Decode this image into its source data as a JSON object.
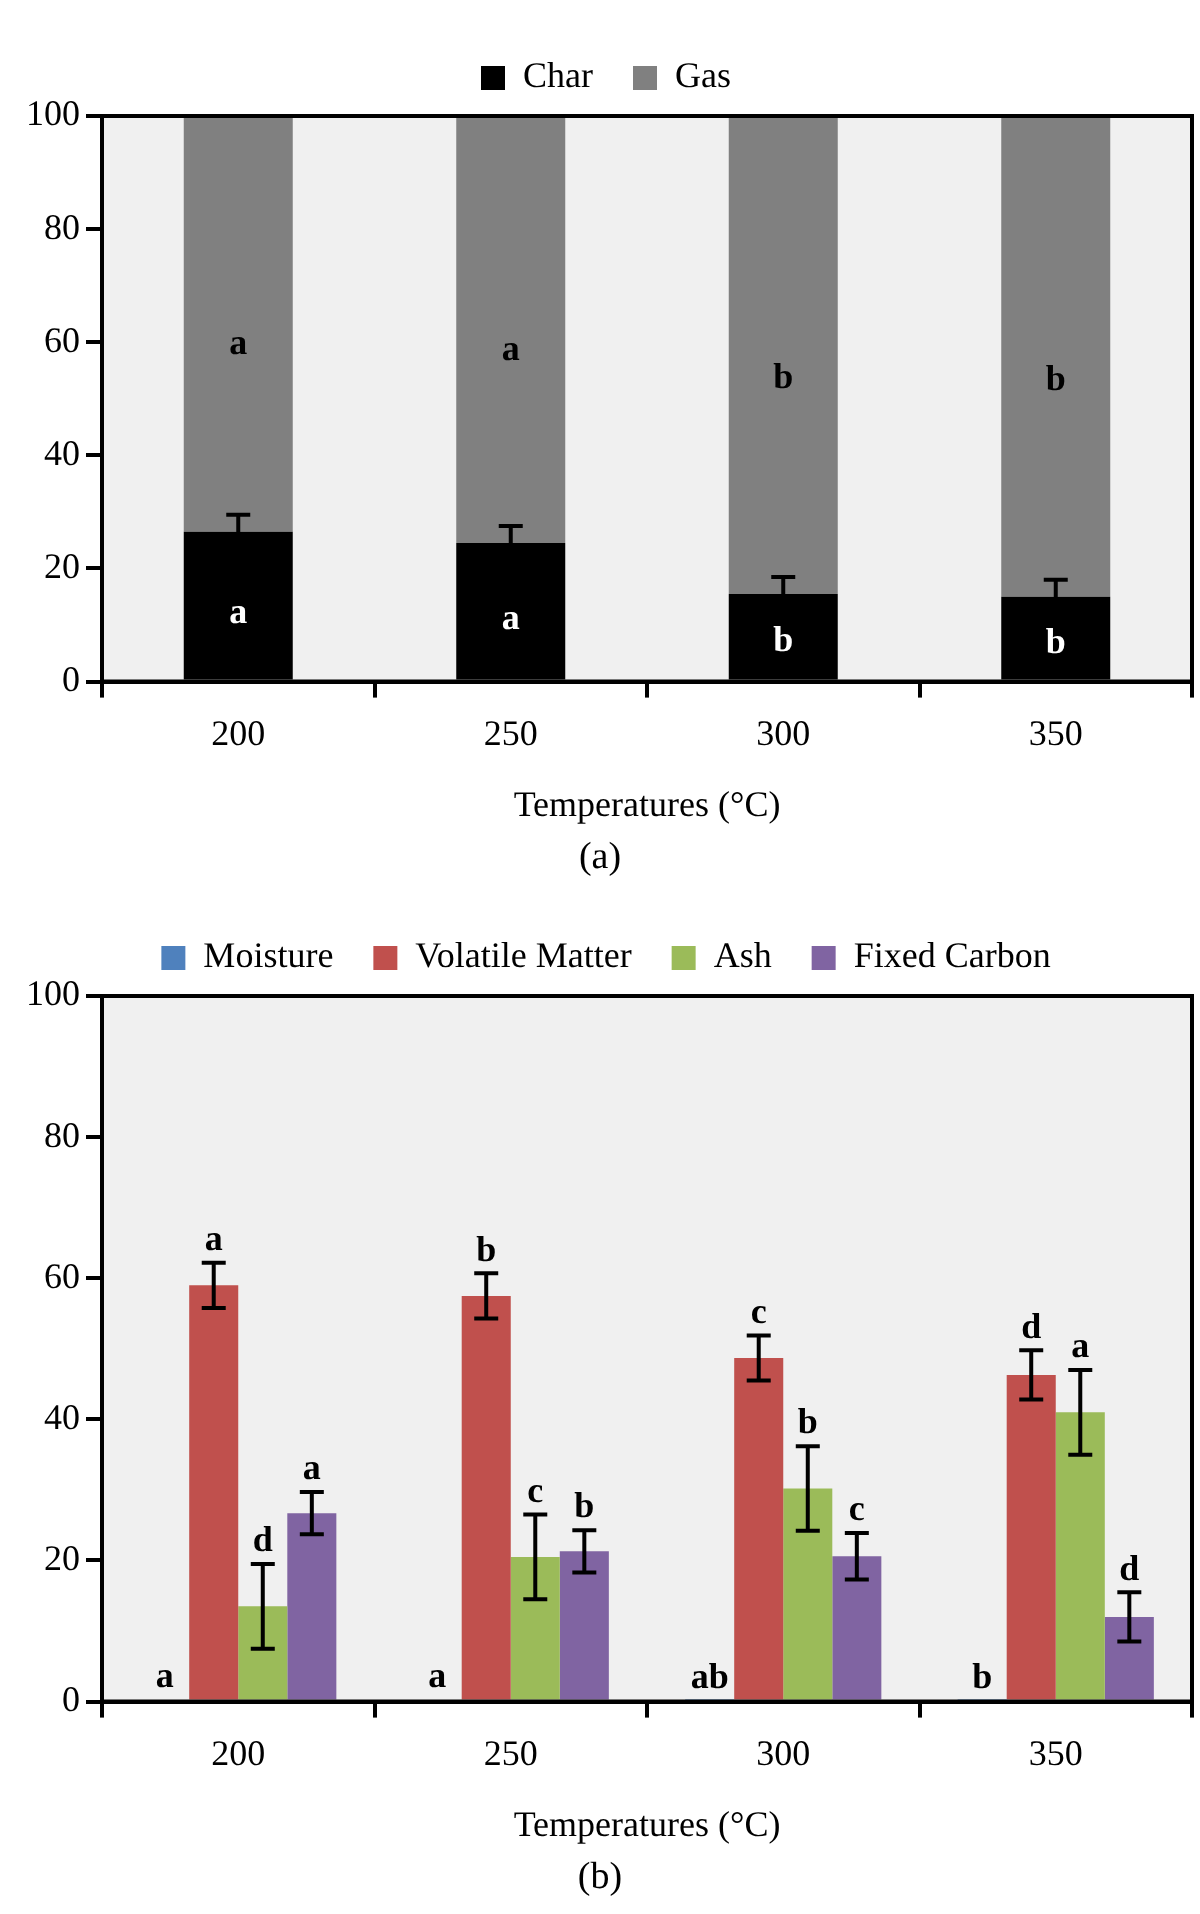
{
  "chart_data": [
    {
      "type": "bar",
      "stacked": true,
      "categories": [
        "200",
        "250",
        "300",
        "350"
      ],
      "xlabel": "Temperatures (°C)",
      "ylim": [
        0,
        100
      ],
      "yticks": [
        0,
        20,
        40,
        60,
        80,
        100
      ],
      "legend": "top",
      "series": [
        {
          "name": "Char",
          "color": "#000000",
          "values": [
            26.5,
            24.5,
            15.5,
            15
          ],
          "errors": [
            3,
            3,
            3,
            3
          ],
          "value_labels": [
            "a",
            "a",
            "b",
            "b"
          ]
        },
        {
          "name": "Gas",
          "color": "#808080",
          "values": [
            73.5,
            75.5,
            84.5,
            85
          ],
          "value_labels": [
            "a",
            "a",
            "b",
            "b"
          ]
        }
      ],
      "annotations": [
        "(a)"
      ]
    },
    {
      "type": "bar",
      "categories": [
        "200",
        "250",
        "300",
        "350"
      ],
      "xlabel": "Temperatures (°C)",
      "ylim": [
        0,
        100
      ],
      "yticks": [
        0,
        20,
        40,
        60,
        80,
        100
      ],
      "legend": "top",
      "series": [
        {
          "name": "Moisture",
          "color": "#4f81bd",
          "values": [
            0.3,
            0.3,
            0.2,
            0.2
          ],
          "value_labels": [
            "a",
            "a",
            "ab",
            "b"
          ]
        },
        {
          "name": "Volatile Matter",
          "color": "#c0504d",
          "values": [
            59,
            57.5,
            48.7,
            46.3
          ],
          "errors": [
            3.2,
            3.2,
            3.2,
            3.5
          ],
          "value_labels": [
            "a",
            "b",
            "c",
            "d"
          ]
        },
        {
          "name": "Ash",
          "color": "#9bbb59",
          "values": [
            13.5,
            20.5,
            30.2,
            41
          ],
          "errors": [
            6,
            6,
            6,
            6
          ],
          "value_labels": [
            "d",
            "c",
            "b",
            "a"
          ]
        },
        {
          "name": "Fixed Carbon",
          "color": "#8064a2",
          "values": [
            26.7,
            21.3,
            20.6,
            12
          ],
          "errors": [
            3,
            3,
            3.3,
            3.5
          ],
          "value_labels": [
            "a",
            "b",
            "c",
            "d"
          ]
        }
      ],
      "annotations": [
        "(b)"
      ]
    }
  ]
}
